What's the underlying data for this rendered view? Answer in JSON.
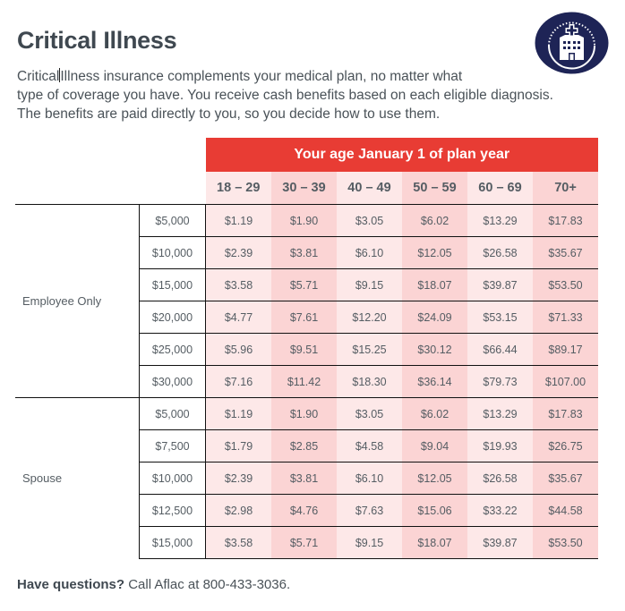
{
  "page": {
    "title": "Critical Illness",
    "intro_lines": [
      [
        "Critical",
        "Illness insurance complements your medical plan, no matter what"
      ],
      "type of coverage you have. You receive cash benefits based on each eligible diagnosis.",
      "The benefits are paid directly to you, so you decide how to use them."
    ],
    "logo_icon": "hospital-building-icon",
    "colors": {
      "header_red": "#e83c34",
      "column_light": "#fde8e8",
      "column_dark": "#fbd4d4",
      "logo_navy": "#1e2456",
      "text": "#4a5258"
    }
  },
  "table": {
    "band_header": "Your age January 1 of plan year",
    "age_columns": [
      "18 – 29",
      "30 – 39",
      "40 – 49",
      "50 – 59",
      "60 – 69",
      "70+"
    ],
    "groups": [
      {
        "label": "Employee Only",
        "rows": [
          {
            "amount": "$5,000",
            "rates": [
              "$1.19",
              "$1.90",
              "$3.05",
              "$6.02",
              "$13.29",
              "$17.83"
            ]
          },
          {
            "amount": "$10,000",
            "rates": [
              "$2.39",
              "$3.81",
              "$6.10",
              "$12.05",
              "$26.58",
              "$35.67"
            ]
          },
          {
            "amount": "$15,000",
            "rates": [
              "$3.58",
              "$5.71",
              "$9.15",
              "$18.07",
              "$39.87",
              "$53.50"
            ]
          },
          {
            "amount": "$20,000",
            "rates": [
              "$4.77",
              "$7.61",
              "$12.20",
              "$24.09",
              "$53.15",
              "$71.33"
            ]
          },
          {
            "amount": "$25,000",
            "rates": [
              "$5.96",
              "$9.51",
              "$15.25",
              "$30.12",
              "$66.44",
              "$89.17"
            ]
          },
          {
            "amount": "$30,000",
            "rates": [
              "$7.16",
              "$11.42",
              "$18.30",
              "$36.14",
              "$79.73",
              "$107.00"
            ]
          }
        ]
      },
      {
        "label": "Spouse",
        "rows": [
          {
            "amount": "$5,000",
            "rates": [
              "$1.19",
              "$1.90",
              "$3.05",
              "$6.02",
              "$13.29",
              "$17.83"
            ]
          },
          {
            "amount": "$7,500",
            "rates": [
              "$1.79",
              "$2.85",
              "$4.58",
              "$9.04",
              "$19.93",
              "$26.75"
            ]
          },
          {
            "amount": "$10,000",
            "rates": [
              "$2.39",
              "$3.81",
              "$6.10",
              "$12.05",
              "$26.58",
              "$35.67"
            ]
          },
          {
            "amount": "$12,500",
            "rates": [
              "$2.98",
              "$4.76",
              "$7.63",
              "$15.06",
              "$33.22",
              "$44.58"
            ]
          },
          {
            "amount": "$15,000",
            "rates": [
              "$3.58",
              "$5.71",
              "$9.15",
              "$18.07",
              "$39.87",
              "$53.50"
            ]
          }
        ]
      }
    ]
  },
  "footer": {
    "bold": "Have questions?",
    "text": " Call Aflac at 800-433-3036."
  }
}
